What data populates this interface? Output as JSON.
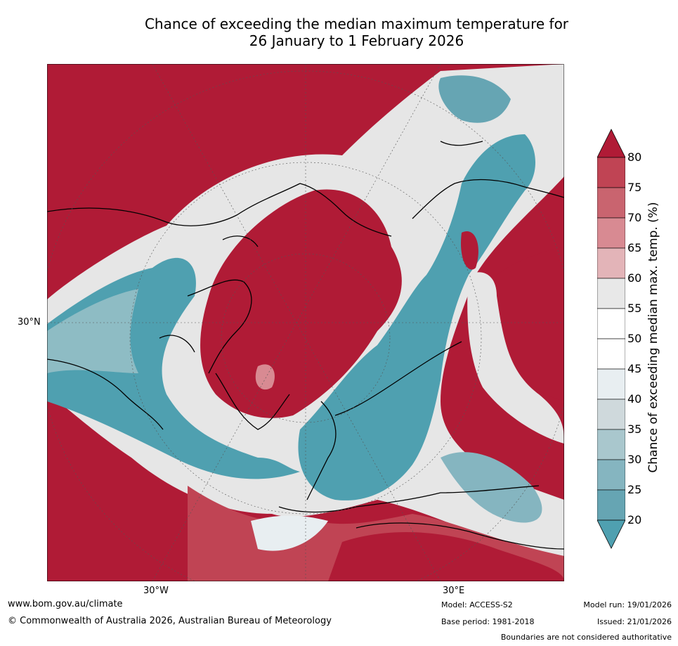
{
  "title_line1": "Chance of exceeding the median maximum temperature for",
  "title_line2": "26 January to 1 February 2026",
  "axis_labels": {
    "lat_30n": "30°N",
    "lon_30w": "30°W",
    "lon_30e": "30°E"
  },
  "colorbar": {
    "label": "Chance of exceeding median max. temp. (%)",
    "ticks": [
      "80",
      "75",
      "70",
      "65",
      "60",
      "55",
      "50",
      "45",
      "40",
      "35",
      "30",
      "25",
      "20"
    ],
    "colors": [
      "#b01b36",
      "#c04454",
      "#c9646f",
      "#d88a92",
      "#e3b4b8",
      "#e8e8e8",
      "#ffffff",
      "#ffffff",
      "#e8eef1",
      "#cfd9dc",
      "#a9c7cd",
      "#85b5c0",
      "#66a5b3",
      "#4fa0b0"
    ]
  },
  "map_colors": {
    "warm": "#b01b36",
    "warm_light": "#d88a92",
    "neutral": "#e8e8e8",
    "cool": "#4fa0b0",
    "cool_light": "#a9c7cd"
  },
  "footer": {
    "url": "www.bom.gov.au/climate",
    "copyright": "© Commonwealth of Australia 2026, Australian Bureau of Meteorology",
    "model": "Model: ACCESS-S2",
    "base_period": "Base period: 1981-2018",
    "model_run": "Model run: 19/01/2026",
    "issued": "Issued: 21/01/2026",
    "disclaimer": "Boundaries are not considered authoritative"
  }
}
